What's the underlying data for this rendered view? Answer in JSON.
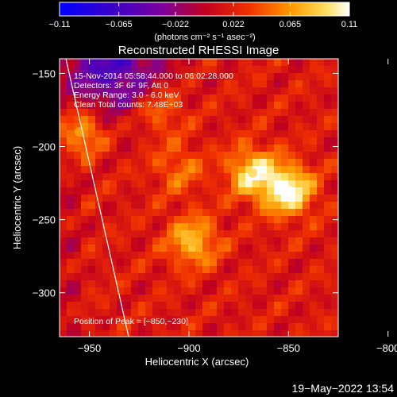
{
  "chart_data": {
    "type": "heatmap",
    "title": "Reconstructed RHESSI Image",
    "xlabel": "Heliocentric X (arcsec)",
    "ylabel": "Heliocentric Y (arcsec)",
    "xlim": [
      -965,
      -825
    ],
    "ylim": [
      -330,
      -140
    ],
    "xticks": [
      -950,
      -900,
      -850,
      -800
    ],
    "xtick_labels": [
      "−950",
      "−900",
      "−850",
      "−800"
    ],
    "yticks": [
      -150,
      -200,
      -250,
      -300
    ],
    "ytick_labels": [
      "−150",
      "−200",
      "−250",
      "−300"
    ],
    "colorbar": {
      "min": -0.11,
      "max": 0.11,
      "ticks": [
        -0.11,
        -0.065,
        -0.022,
        0.022,
        0.065,
        0.11
      ],
      "tick_labels": [
        "−0.11",
        "−0.065",
        "−0.022",
        "0.022",
        "0.065",
        "0.11"
      ],
      "unit_label": "(photons cm⁻² s⁻¹ asec⁻²)"
    },
    "sources": [
      {
        "x": -850,
        "y": -230,
        "value": 0.11
      },
      {
        "x": -868,
        "y": -218,
        "value": 0.09
      },
      {
        "x": -898,
        "y": -265,
        "value": 0.075
      },
      {
        "x": -955,
        "y": -190,
        "value": 0.07
      },
      {
        "x": -915,
        "y": -175,
        "value": 0.045
      },
      {
        "x": -905,
        "y": -215,
        "value": 0.04
      }
    ],
    "annotations": {
      "time_range": "15-Nov-2014 05:58:44.000 to 06:02:28.000",
      "detectors": "Detectors: 3F 6F 9F, Att 0",
      "energy": "Energy Range: 3.0 - 6.0 keV",
      "clean": "Clean    Total counts: 7.48E+03",
      "peak": "Position of Peak = [−850,−230]"
    }
  },
  "footer": {
    "date": "19−May−2022 13:54"
  },
  "colors": {
    "background": "#000000",
    "text": "#ffffff",
    "limb": "#ffffff"
  }
}
